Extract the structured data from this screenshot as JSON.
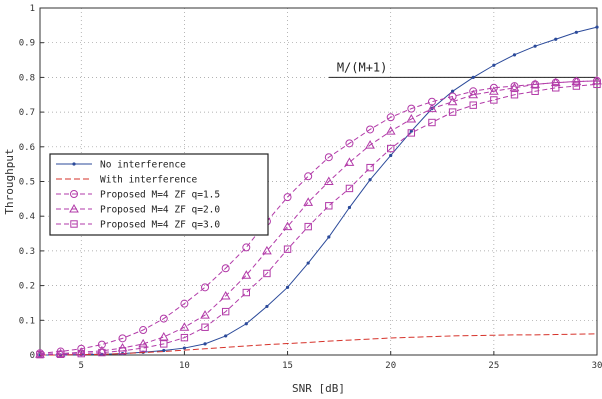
{
  "chart_data": {
    "type": "line",
    "title": "",
    "xlabel": "SNR [dB]",
    "ylabel": "Throughput",
    "xlim": [
      3,
      30
    ],
    "ylim": [
      0,
      1
    ],
    "xticks": [
      5,
      10,
      15,
      20,
      25,
      30
    ],
    "yticks": [
      0,
      0.1,
      0.2,
      0.3,
      0.4,
      0.5,
      0.6,
      0.7,
      0.8,
      0.9,
      1
    ],
    "grid": true,
    "legend_position": "left",
    "annotation": {
      "text": "M/(M+1)",
      "y": 0.8,
      "x_start": 17,
      "x_end": 30
    },
    "x": [
      3,
      4,
      5,
      6,
      7,
      8,
      9,
      10,
      11,
      12,
      13,
      14,
      15,
      16,
      17,
      18,
      19,
      20,
      21,
      22,
      23,
      24,
      25,
      26,
      27,
      28,
      29,
      30
    ],
    "series": [
      {
        "name": "No interference",
        "color": "#2b4a9a",
        "dash": "",
        "marker": "dot",
        "values": [
          0.0,
          0.0,
          0.001,
          0.002,
          0.004,
          0.008,
          0.013,
          0.02,
          0.032,
          0.055,
          0.09,
          0.14,
          0.195,
          0.265,
          0.34,
          0.425,
          0.505,
          0.575,
          0.645,
          0.71,
          0.76,
          0.8,
          0.835,
          0.865,
          0.89,
          0.91,
          0.93,
          0.945
        ]
      },
      {
        "name": "With interference",
        "color": "#d6322a",
        "dash": "6,3",
        "marker": "none",
        "values": [
          0.0,
          0.0,
          0.001,
          0.002,
          0.004,
          0.007,
          0.01,
          0.014,
          0.018,
          0.022,
          0.026,
          0.03,
          0.033,
          0.036,
          0.04,
          0.043,
          0.046,
          0.049,
          0.051,
          0.053,
          0.055,
          0.056,
          0.057,
          0.058,
          0.058,
          0.059,
          0.06,
          0.061
        ]
      },
      {
        "name": "Proposed M=4 ZF q=1.5",
        "color": "#b23aa8",
        "dash": "5,3",
        "marker": "circle",
        "values": [
          0.005,
          0.01,
          0.018,
          0.03,
          0.048,
          0.072,
          0.105,
          0.148,
          0.195,
          0.25,
          0.31,
          0.385,
          0.455,
          0.515,
          0.57,
          0.61,
          0.65,
          0.685,
          0.71,
          0.73,
          0.745,
          0.76,
          0.77,
          0.775,
          0.78,
          0.785,
          0.788,
          0.79
        ]
      },
      {
        "name": "Proposed M=4 ZF q=2.0",
        "color": "#b23aa8",
        "dash": "5,3",
        "marker": "triangle",
        "values": [
          0.002,
          0.004,
          0.008,
          0.012,
          0.02,
          0.032,
          0.052,
          0.08,
          0.115,
          0.17,
          0.23,
          0.3,
          0.37,
          0.44,
          0.5,
          0.555,
          0.605,
          0.645,
          0.68,
          0.71,
          0.73,
          0.75,
          0.76,
          0.77,
          0.78,
          0.785,
          0.788,
          0.79
        ]
      },
      {
        "name": "Proposed M=4 ZF q=3.0",
        "color": "#b23aa8",
        "dash": "5,3",
        "marker": "square",
        "values": [
          0.001,
          0.002,
          0.004,
          0.007,
          0.012,
          0.02,
          0.032,
          0.05,
          0.08,
          0.125,
          0.18,
          0.235,
          0.305,
          0.37,
          0.43,
          0.48,
          0.54,
          0.595,
          0.64,
          0.67,
          0.7,
          0.72,
          0.735,
          0.75,
          0.76,
          0.77,
          0.775,
          0.78
        ]
      }
    ]
  }
}
